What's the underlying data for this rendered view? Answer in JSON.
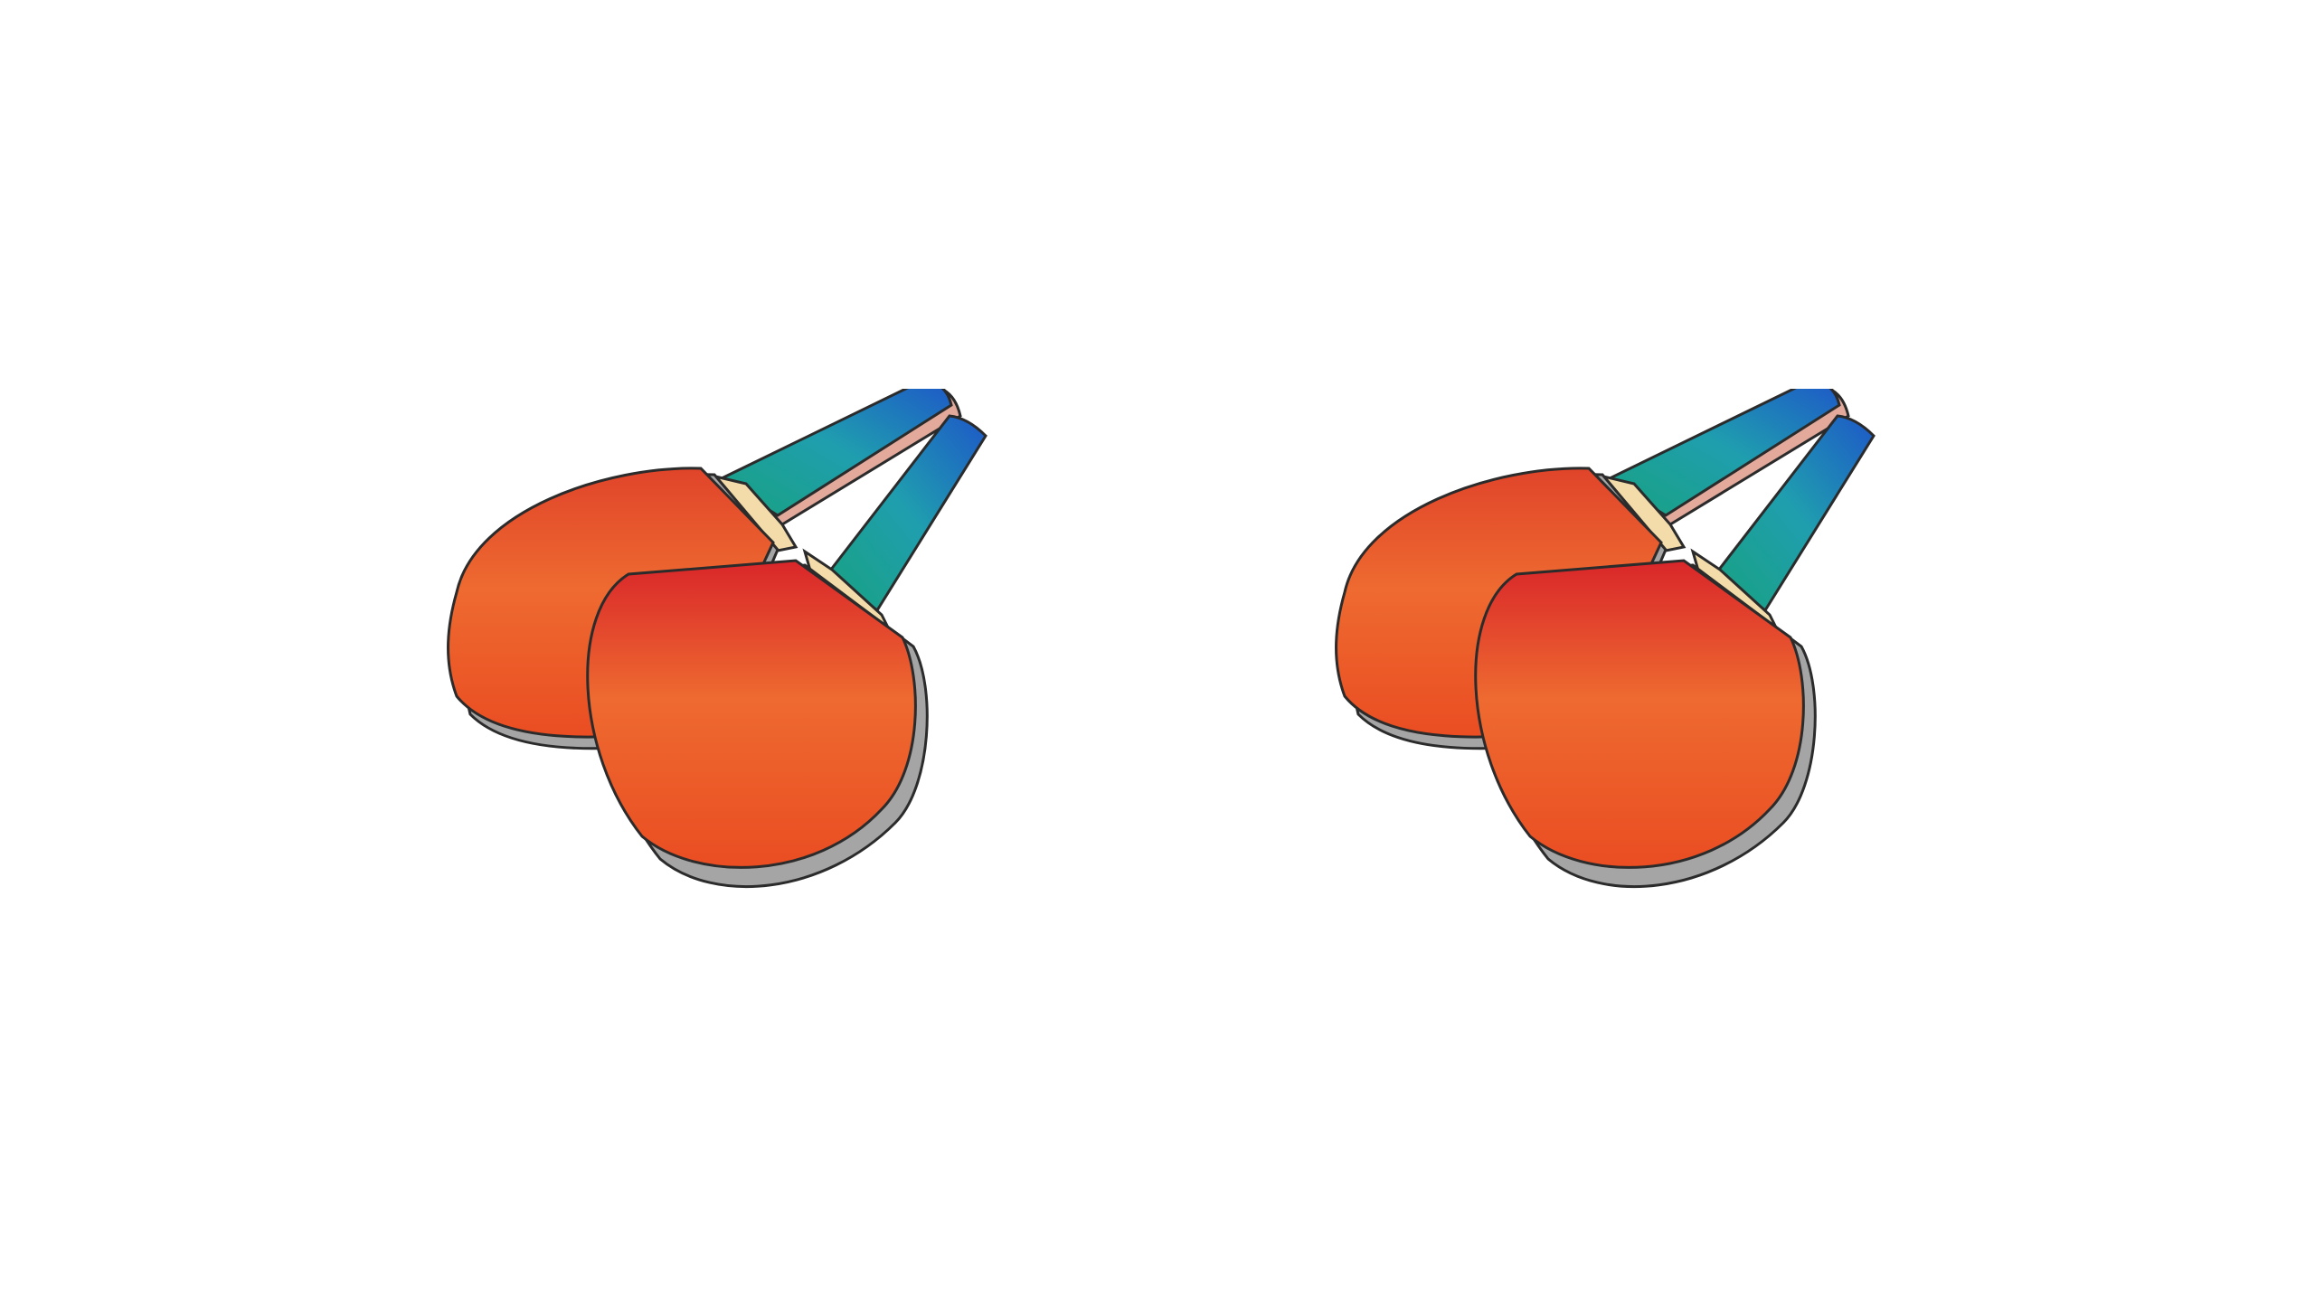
{
  "scene": {
    "background_color": "#ffffff",
    "pairs": [
      {
        "name": "paddle-pair-left",
        "icon": "ping-pong-paddles-icon"
      },
      {
        "name": "paddle-pair-right",
        "icon": "ping-pong-paddles-icon"
      }
    ],
    "colors": {
      "rubber_light": "#ee6a30",
      "rubber_mid": "#e9562a",
      "rubber_dark": "#d92c2a",
      "edge_gray": "#a5a5a5",
      "outline": "#2b2b2b",
      "handle_teal": "#1fa88c",
      "handle_blue": "#1d5fc4",
      "handle_wood": "#f3dcaa",
      "handle_pink": "#e3aa9c"
    }
  }
}
